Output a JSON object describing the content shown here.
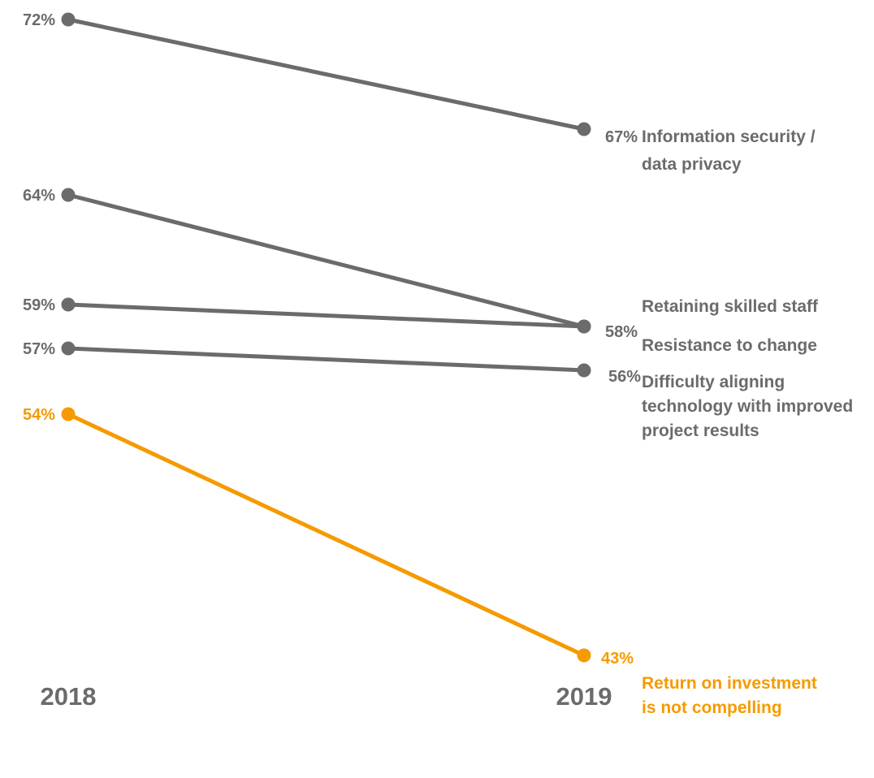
{
  "chart_data": {
    "type": "line",
    "x": [
      "2018",
      "2019"
    ],
    "series": [
      {
        "key": "security",
        "values": [
          72,
          67
        ],
        "start_label": "72%",
        "end_label": "67%",
        "name_lines": [
          "Information security /",
          "data privacy"
        ],
        "color": "#6b6b6b"
      },
      {
        "key": "staff",
        "values": [
          64,
          58
        ],
        "start_label": "64%",
        "end_label": "58%",
        "name_lines": [
          "Retaining skilled staff"
        ],
        "color": "#6b6b6b"
      },
      {
        "key": "change",
        "values": [
          59,
          58
        ],
        "start_label": "59%",
        "end_label": "",
        "name_lines": [
          "Resistance to change"
        ],
        "color": "#6b6b6b"
      },
      {
        "key": "aligning",
        "values": [
          57,
          56
        ],
        "start_label": "57%",
        "end_label": "56%",
        "name_lines": [
          "Difficulty aligning",
          "technology with improved",
          "project results"
        ],
        "color": "#6b6b6b"
      },
      {
        "key": "roi",
        "values": [
          54,
          43
        ],
        "start_label": "54%",
        "end_label": "43%",
        "name_lines": [
          "Return on investment",
          "is not compelling"
        ],
        "color": "#f59a00"
      }
    ],
    "ylim": [
      43,
      72
    ],
    "grid": false,
    "legend": "none",
    "title": "",
    "xlabel": "",
    "ylabel": ""
  }
}
